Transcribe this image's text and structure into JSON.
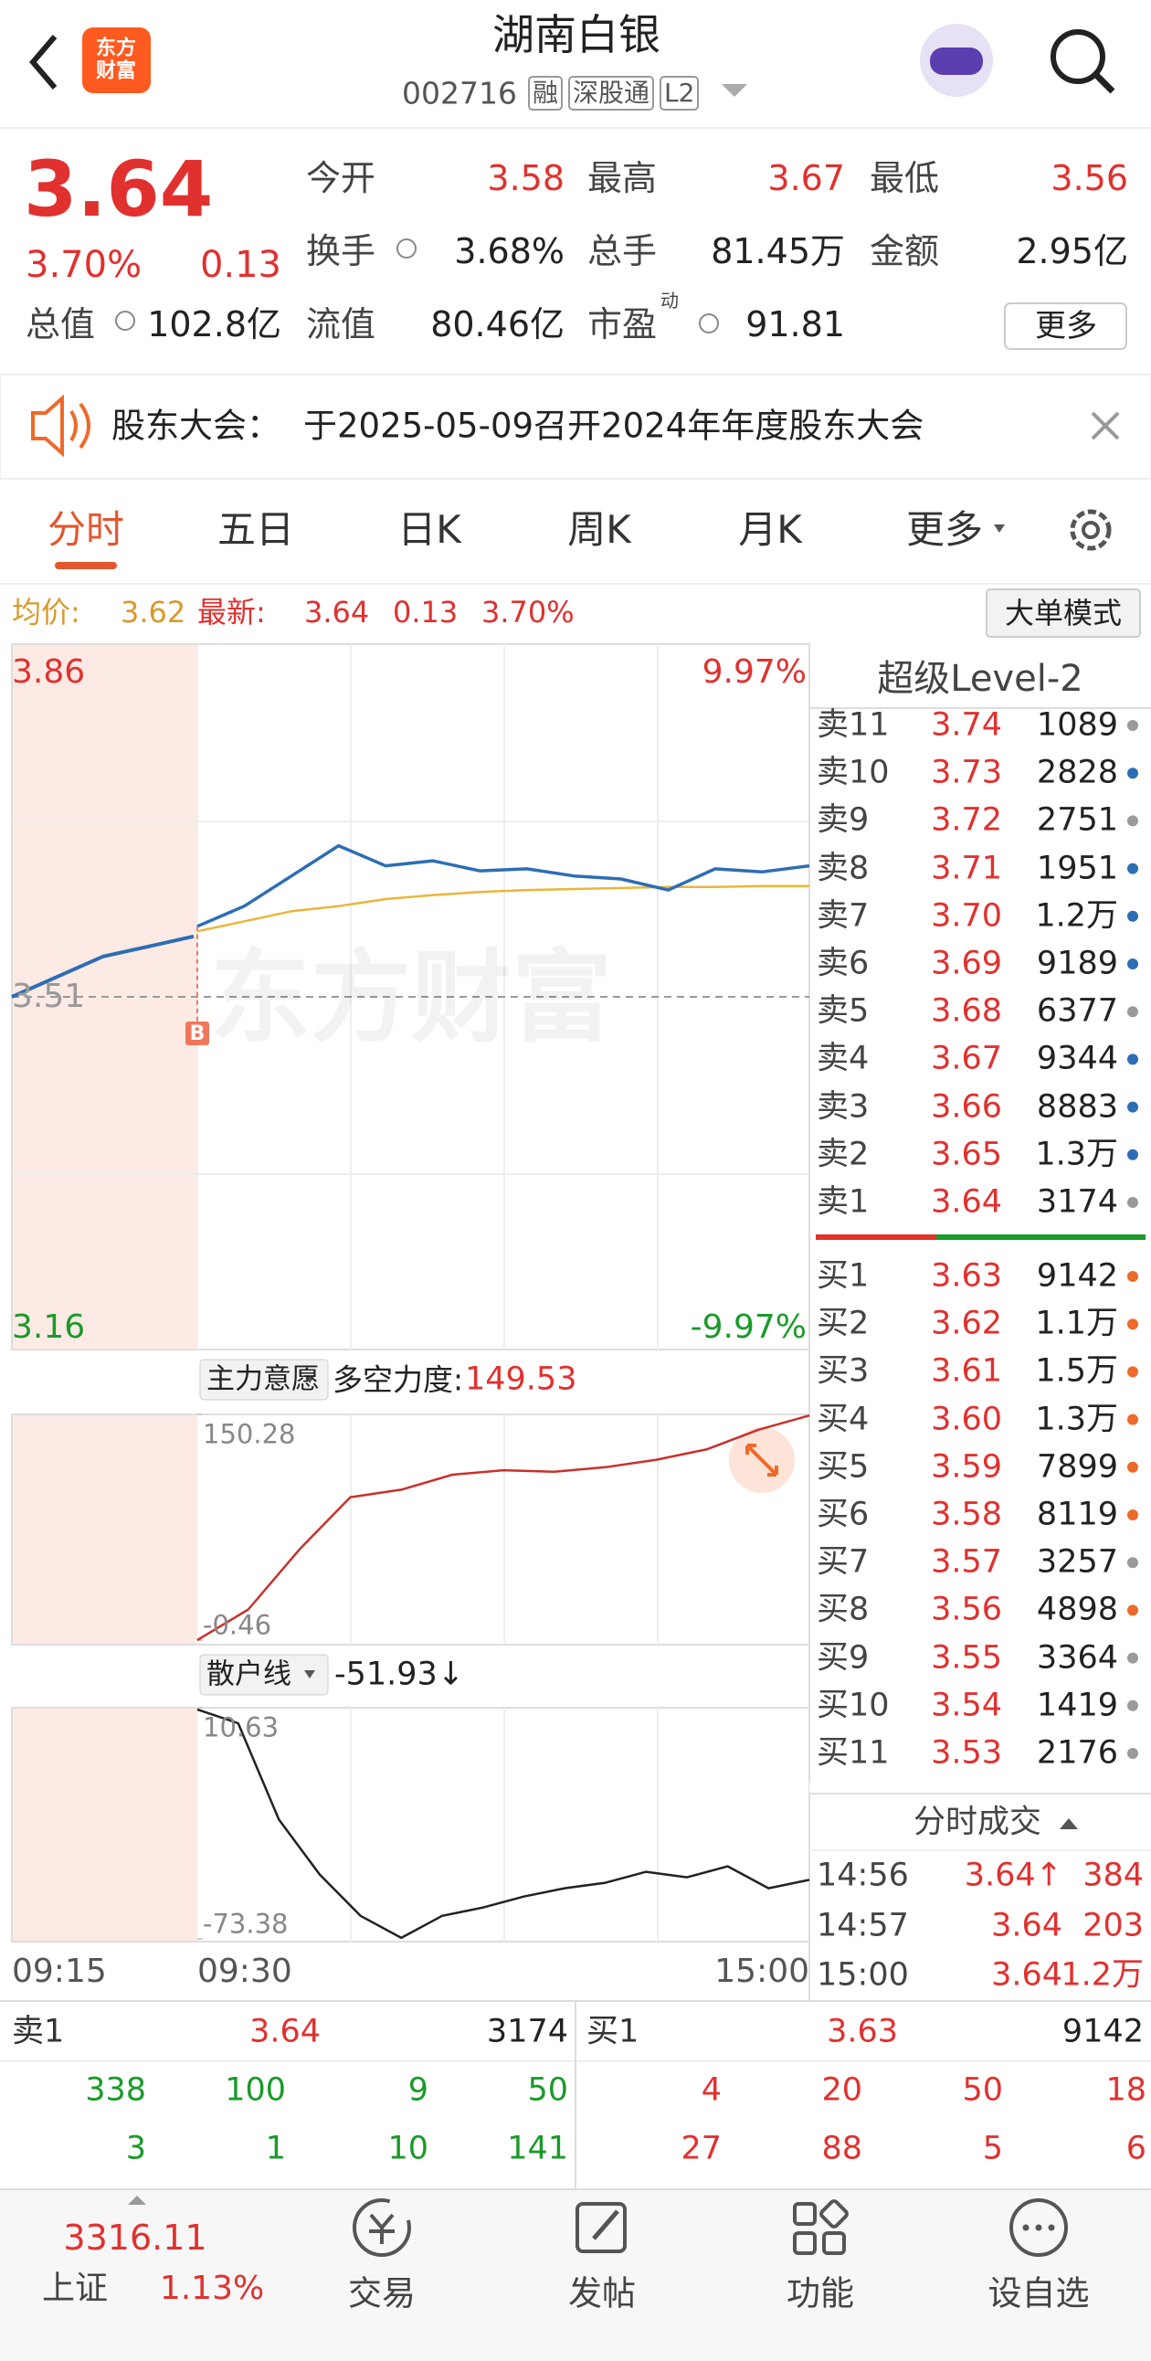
{
  "header": {
    "logo": "东方财富",
    "title": "湖南白银",
    "code": "002716",
    "badges": [
      "融",
      "深股通",
      "L2"
    ]
  },
  "quote": {
    "price": "3.64",
    "change_pct": "3.70%",
    "change": "0.13",
    "stats": [
      {
        "label": "今开",
        "value": "3.58"
      },
      {
        "label": "最高",
        "value": "3.67"
      },
      {
        "label": "最低",
        "value": "3.56"
      },
      {
        "label": "换手",
        "value": "3.68%"
      },
      {
        "label": "总手",
        "value": "81.45万"
      },
      {
        "label": "金额",
        "value": "2.95亿"
      },
      {
        "label": "总值",
        "value": "102.8亿"
      },
      {
        "label": "流值",
        "value": "80.46亿"
      },
      {
        "label": "市盈",
        "sup": "动",
        "value": "91.81"
      }
    ],
    "more": "更多"
  },
  "notice": {
    "label": "股东大会：",
    "text": "于2025-05-09召开2024年年度股东大会"
  },
  "tabs": [
    "分时",
    "五日",
    "日K",
    "周K",
    "月K",
    "更多"
  ],
  "info": {
    "avg_label": "均价:",
    "avg": "3.62",
    "latest_label": "最新:",
    "latest": "3.64",
    "change": "0.13",
    "change_pct": "3.70%",
    "mode_button": "大单模式"
  },
  "chart_data": [
    {
      "type": "line",
      "watermark": "东方财富",
      "ylim": [
        3.16,
        3.86
      ],
      "yticks": [
        3.86,
        3.51,
        3.16
      ],
      "y2lim": [
        -9.97,
        9.97
      ],
      "y2ticks": [
        {
          "value": 9.97,
          "label": "9.97%"
        },
        {
          "value": -9.97,
          "label": "-9.97%"
        }
      ],
      "xticks": [
        "09:15",
        "09:30",
        "15:00"
      ],
      "marker": "B",
      "preopen": {
        "color": "#2d6db5",
        "values": [
          3.51,
          3.53,
          3.55,
          3.56,
          3.57
        ]
      },
      "series": [
        {
          "color": "#2d6db5",
          "values": [
            3.58,
            3.6,
            3.63,
            3.66,
            3.64,
            3.645,
            3.635,
            3.637,
            3.63,
            3.627,
            3.616,
            3.637,
            3.634,
            3.64
          ]
        },
        {
          "color": "#e9b63a",
          "values": [
            3.575,
            3.585,
            3.595,
            3.6,
            3.607,
            3.611,
            3.614,
            3.616,
            3.617,
            3.618,
            3.619,
            3.619,
            3.62,
            3.62
          ]
        }
      ]
    },
    {
      "type": "line",
      "selector": "主力意愿",
      "metric_label": "多空力度:",
      "metric_value": "149.53",
      "ylim": [
        -0.46,
        150.28
      ],
      "yticks": [
        150.28,
        -0.46
      ],
      "color": "#c9302c",
      "values": [
        -0.46,
        20,
        60,
        95,
        100,
        110,
        113,
        112,
        115,
        120,
        127,
        140,
        149.53
      ]
    },
    {
      "type": "line",
      "selector": "散户线",
      "metric_value": "-51.93↓",
      "ylim": [
        -73.38,
        10.63
      ],
      "yticks": [
        10.63,
        -73.38
      ],
      "color": "#222222",
      "values": [
        10,
        5,
        -30,
        -50,
        -65,
        -73,
        -65,
        -62,
        -58,
        -55,
        -53,
        -49,
        -51,
        -47,
        -55,
        -51.93
      ]
    }
  ],
  "level2": {
    "title": "超级Level-2",
    "asks": [
      {
        "label": "卖11",
        "price": "3.74",
        "volume": "1089",
        "dot": "#9a9a9a"
      },
      {
        "label": "卖10",
        "price": "3.73",
        "volume": "2828",
        "dot": "#2d6db5"
      },
      {
        "label": "卖9",
        "price": "3.72",
        "volume": "2751",
        "dot": "#9a9a9a"
      },
      {
        "label": "卖8",
        "price": "3.71",
        "volume": "1951",
        "dot": "#2d6db5"
      },
      {
        "label": "卖7",
        "price": "3.70",
        "volume": "1.2万",
        "dot": "#2d6db5"
      },
      {
        "label": "卖6",
        "price": "3.69",
        "volume": "9189",
        "dot": "#2d6db5"
      },
      {
        "label": "卖5",
        "price": "3.68",
        "volume": "6377",
        "dot": "#9a9a9a"
      },
      {
        "label": "卖4",
        "price": "3.67",
        "volume": "9344",
        "dot": "#2d6db5"
      },
      {
        "label": "卖3",
        "price": "3.66",
        "volume": "8883",
        "dot": "#2d6db5"
      },
      {
        "label": "卖2",
        "price": "3.65",
        "volume": "1.3万",
        "dot": "#2d6db5"
      },
      {
        "label": "卖1",
        "price": "3.64",
        "volume": "3174",
        "dot": "#9a9a9a"
      }
    ],
    "bids": [
      {
        "label": "买1",
        "price": "3.63",
        "volume": "9142",
        "dot": "#ee6a2a"
      },
      {
        "label": "买2",
        "price": "3.62",
        "volume": "1.1万",
        "dot": "#ee6a2a"
      },
      {
        "label": "买3",
        "price": "3.61",
        "volume": "1.5万",
        "dot": "#ee6a2a"
      },
      {
        "label": "买4",
        "price": "3.60",
        "volume": "1.3万",
        "dot": "#ee6a2a"
      },
      {
        "label": "买5",
        "price": "3.59",
        "volume": "7899",
        "dot": "#ee6a2a"
      },
      {
        "label": "买6",
        "price": "3.58",
        "volume": "8119",
        "dot": "#ee6a2a"
      },
      {
        "label": "买7",
        "price": "3.57",
        "volume": "3257",
        "dot": "#9a9a9a"
      },
      {
        "label": "买8",
        "price": "3.56",
        "volume": "4898",
        "dot": "#ee6a2a"
      },
      {
        "label": "买9",
        "price": "3.55",
        "volume": "3364",
        "dot": "#9a9a9a"
      },
      {
        "label": "买10",
        "price": "3.54",
        "volume": "1419",
        "dot": "#9a9a9a"
      },
      {
        "label": "买11",
        "price": "3.53",
        "volume": "2176",
        "dot": "#9a9a9a"
      }
    ]
  },
  "trades": {
    "title": "分时成交",
    "rows": [
      [
        "14:56",
        "3.64↑",
        "384"
      ],
      [
        "14:57",
        "3.64",
        "203"
      ],
      [
        "15:00",
        "3.64",
        "1.2万"
      ]
    ]
  },
  "depth": {
    "ask": {
      "label": "卖1",
      "price": "3.64",
      "volume": "3174",
      "rows": [
        [
          "338",
          "100",
          "9",
          "50"
        ],
        [
          "3",
          "1",
          "10",
          "141"
        ]
      ]
    },
    "bid": {
      "label": "买1",
      "price": "3.63",
      "volume": "9142",
      "rows": [
        [
          "4",
          "20",
          "50",
          "18"
        ],
        [
          "27",
          "88",
          "5",
          "6"
        ]
      ]
    }
  },
  "nav": {
    "index_value": "3316.11",
    "index_name": "上证",
    "index_change": "1.13%",
    "items": [
      "交易",
      "发帖",
      "功能",
      "设自选"
    ]
  }
}
